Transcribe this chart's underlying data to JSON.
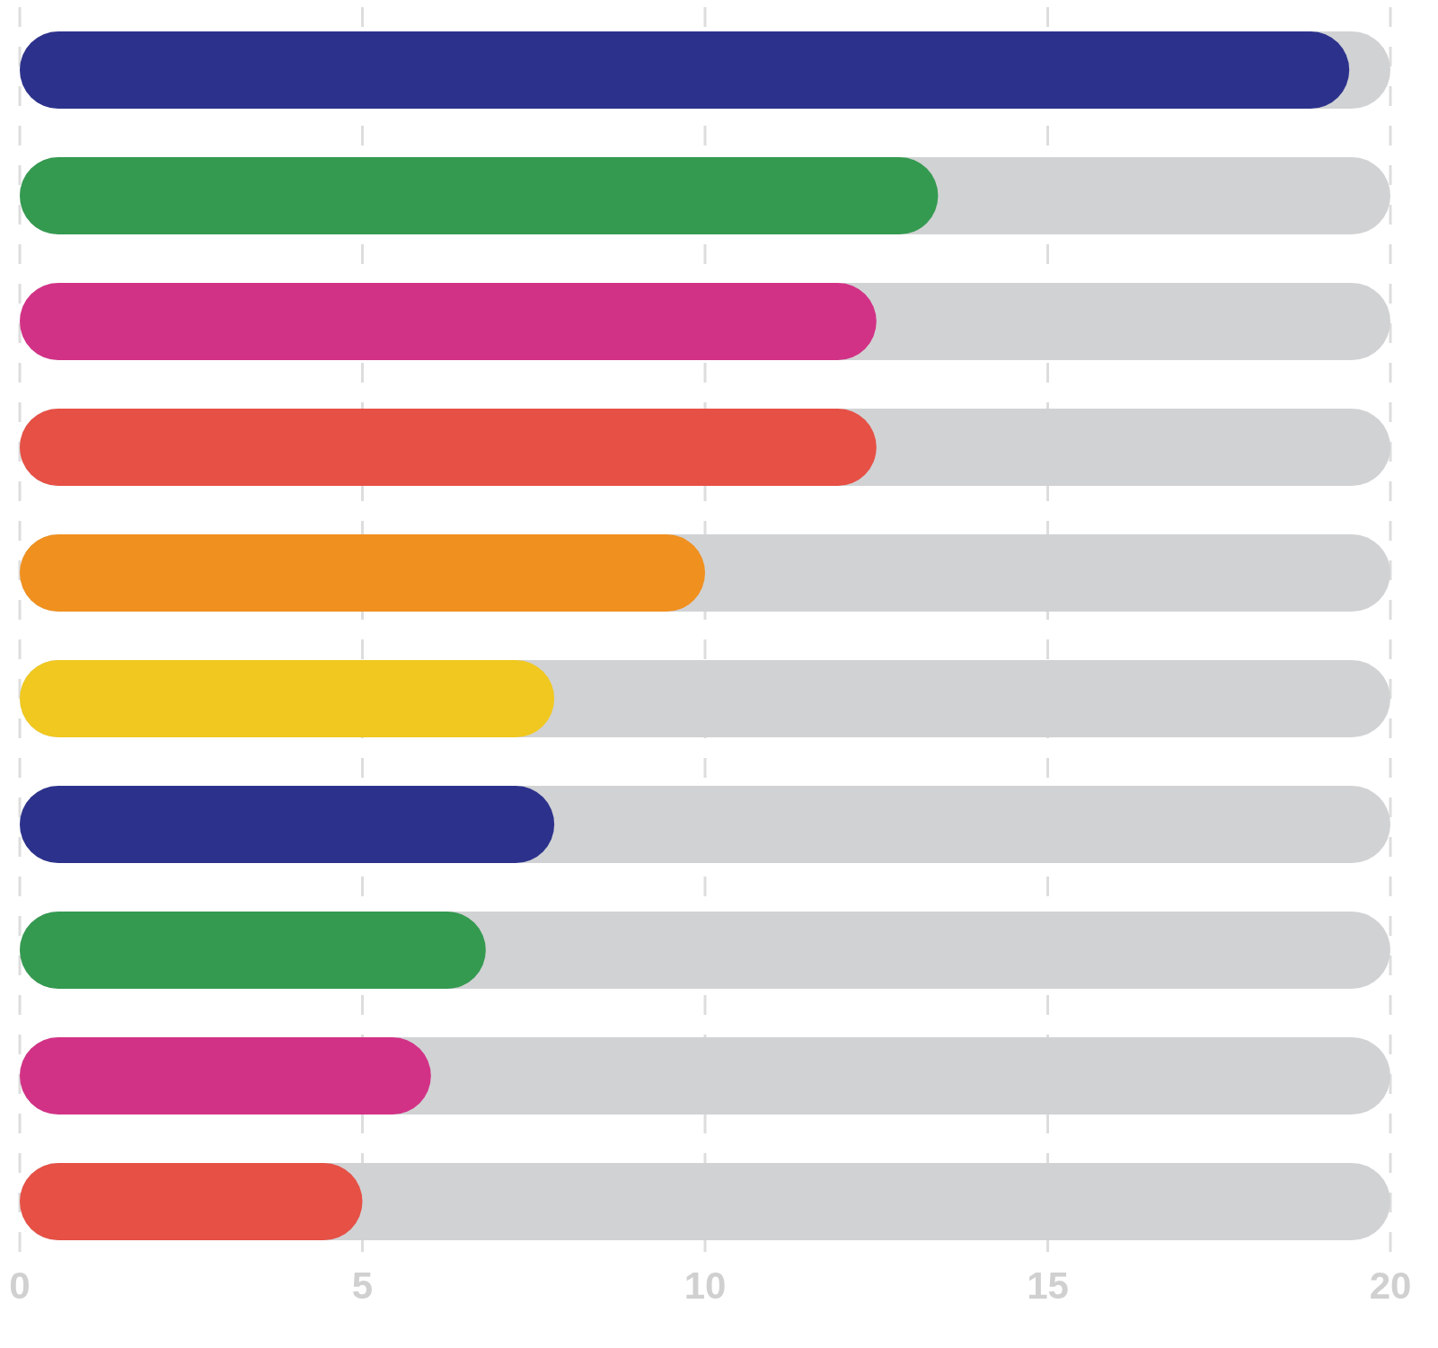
{
  "chart_data": {
    "type": "bar",
    "orientation": "horizontal",
    "categories": [
      null,
      null,
      null,
      null,
      null,
      null,
      null,
      null,
      null,
      null
    ],
    "values": [
      19.4,
      13.4,
      12.5,
      12.5,
      10,
      7.8,
      7.8,
      6.8,
      6,
      5
    ],
    "colors": [
      "#2c328c",
      "#349a50",
      "#d23286",
      "#e65045",
      "#f0901f",
      "#f0c81f",
      "#2c328c",
      "#349a50",
      "#d23286",
      "#e65045"
    ],
    "xlim": [
      0,
      20
    ],
    "xticks": [
      0,
      5,
      10,
      15,
      20
    ],
    "grid": "x",
    "tick_labels": "x"
  }
}
